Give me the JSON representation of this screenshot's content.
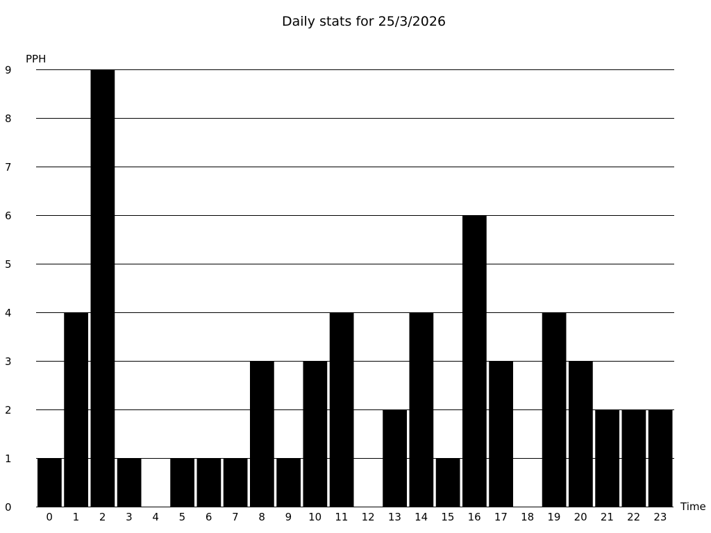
{
  "chart_data": {
    "type": "bar",
    "title": "Daily stats for 25/3/2026",
    "xlabel": "Time",
    "ylabel": "PPH",
    "categories": [
      "0",
      "1",
      "2",
      "3",
      "4",
      "5",
      "6",
      "7",
      "8",
      "9",
      "10",
      "11",
      "12",
      "13",
      "14",
      "15",
      "16",
      "17",
      "18",
      "19",
      "20",
      "21",
      "22",
      "23"
    ],
    "values": [
      1,
      4,
      9,
      1,
      0,
      1,
      1,
      1,
      3,
      1,
      3,
      4,
      0,
      2,
      4,
      1,
      6,
      3,
      0,
      4,
      3,
      2,
      2,
      2
    ],
    "ylim": [
      0,
      9
    ],
    "yticks": [
      0,
      1,
      2,
      3,
      4,
      5,
      6,
      7,
      8,
      9
    ],
    "grid": true,
    "bar_color": "#000000",
    "grid_color": "#000000"
  }
}
